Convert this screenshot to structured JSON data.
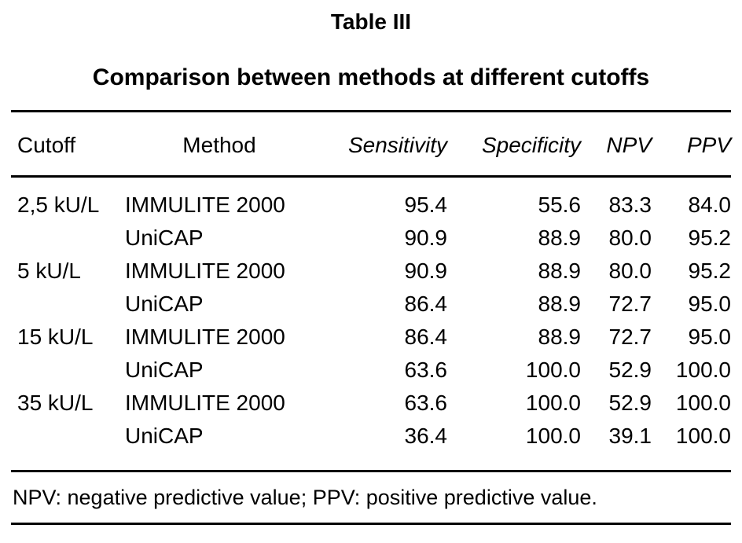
{
  "title": "Table III",
  "subtitle": "Comparison between methods at different cutoffs",
  "table": {
    "headers": [
      "Cutoff",
      "Method",
      "Sensitivity",
      "Specificity",
      "NPV",
      "PPV"
    ],
    "rows": [
      [
        "2,5 kU/L",
        "IMMULITE 2000",
        "95.4",
        "55.6",
        "83.3",
        "84.0"
      ],
      [
        "",
        "UniCAP",
        "90.9",
        "88.9",
        "80.0",
        "95.2"
      ],
      [
        "5 kU/L",
        "IMMULITE 2000",
        "90.9",
        "88.9",
        "80.0",
        "95.2"
      ],
      [
        "",
        "UniCAP",
        "86.4",
        "88.9",
        "72.7",
        "95.0"
      ],
      [
        "15 kU/L",
        "IMMULITE 2000",
        "86.4",
        "88.9",
        "72.7",
        "95.0"
      ],
      [
        "",
        "UniCAP",
        "63.6",
        "100.0",
        "52.9",
        "100.0"
      ],
      [
        "35 kU/L",
        "IMMULITE 2000",
        "63.6",
        "100.0",
        "52.9",
        "100.0"
      ],
      [
        "",
        "UniCAP",
        "36.4",
        "100.0",
        "39.1",
        "100.0"
      ]
    ]
  },
  "footnote": "NPV: negative predictive value; PPV: positive predictive value."
}
